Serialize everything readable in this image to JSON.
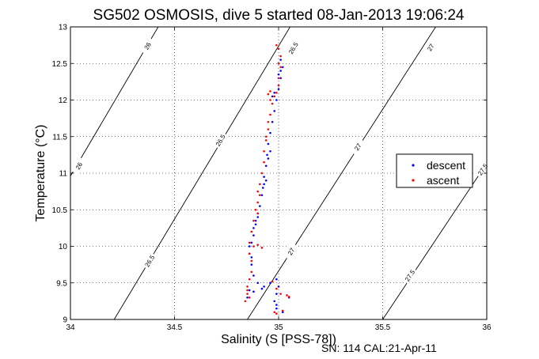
{
  "chart_data": {
    "type": "scatter",
    "title": "SG502 OSMOSIS, dive 5 started 08-Jan-2013 19:06:24",
    "xlabel": "Salinity (S [PSS-78])",
    "ylabel": "Temperature (°C)",
    "footer": "SN: 114  CAL:21-Apr-11",
    "xlim": [
      34,
      36
    ],
    "ylim": [
      9,
      13
    ],
    "x_ticks": [
      "34",
      "34.5",
      "35",
      "35.5",
      "36"
    ],
    "y_ticks": [
      "9",
      "9.5",
      "10",
      "10.5",
      "11",
      "11.5",
      "12",
      "12.5",
      "13"
    ],
    "grid": true,
    "legend_position": "right",
    "legend": [
      "descent",
      "ascent"
    ],
    "colors": {
      "descent": "#0000ff",
      "ascent": "#ff0000",
      "contour": "#000000"
    },
    "contours": [
      {
        "label": "26",
        "points": [
          [
            34.0,
            10.96
          ],
          [
            34.5,
            13.38
          ]
        ],
        "label_at": [
          [
            34.04,
            11.1
          ],
          [
            34.37,
            12.74
          ]
        ]
      },
      {
        "label": "26.5",
        "points": [
          [
            34.21,
            9.0
          ],
          [
            35.07,
            13.07
          ]
        ],
        "label_at": [
          [
            34.38,
            9.8
          ],
          [
            34.72,
            11.45
          ],
          [
            35.07,
            12.71
          ]
        ]
      },
      {
        "label": "27",
        "points": [
          [
            34.85,
            9.0
          ],
          [
            35.8,
            13.2
          ]
        ],
        "label_at": [
          [
            35.06,
            9.93
          ],
          [
            35.38,
            11.36
          ],
          [
            35.73,
            12.72
          ]
        ]
      },
      {
        "label": "27.5",
        "points": [
          [
            35.5,
            9.0
          ],
          [
            36.05,
            11.35
          ]
        ],
        "label_at": [
          [
            35.63,
            9.6
          ],
          [
            35.98,
            11.05
          ]
        ]
      }
    ],
    "series": [
      {
        "name": "descent",
        "points": [
          [
            35.01,
            12.55
          ],
          [
            35.02,
            12.45
          ],
          [
            35.01,
            12.3
          ],
          [
            35.0,
            12.15
          ],
          [
            34.99,
            12.0
          ],
          [
            34.98,
            11.85
          ],
          [
            34.97,
            11.7
          ],
          [
            34.96,
            11.55
          ],
          [
            34.95,
            11.4
          ],
          [
            34.945,
            11.25
          ],
          [
            34.94,
            11.1
          ],
          [
            34.93,
            10.95
          ],
          [
            34.925,
            10.8
          ],
          [
            34.92,
            10.7
          ],
          [
            34.91,
            10.55
          ],
          [
            34.9,
            10.4
          ],
          [
            34.89,
            10.3
          ],
          [
            34.88,
            10.15
          ],
          [
            34.87,
            10.05
          ],
          [
            34.86,
            9.9
          ],
          [
            34.87,
            9.75
          ],
          [
            34.88,
            9.6
          ],
          [
            34.9,
            9.5
          ],
          [
            34.93,
            9.45
          ],
          [
            34.96,
            9.5
          ],
          [
            34.99,
            9.55
          ],
          [
            35.0,
            9.45
          ],
          [
            34.99,
            9.35
          ],
          [
            34.98,
            9.25
          ],
          [
            34.99,
            9.15
          ],
          [
            35.02,
            9.1
          ],
          [
            34.85,
            9.3
          ],
          [
            34.86,
            9.4
          ],
          [
            34.88,
            9.38
          ],
          [
            34.92,
            9.42
          ],
          [
            35.05,
            9.3
          ],
          [
            34.95,
            11.2
          ],
          [
            34.96,
            11.3
          ],
          [
            34.97,
            12.05
          ],
          [
            34.98,
            12.1
          ],
          [
            35.0,
            12.35
          ],
          [
            35.01,
            12.4
          ],
          [
            34.93,
            10.85
          ],
          [
            34.94,
            10.9
          ],
          [
            34.9,
            10.45
          ],
          [
            34.89,
            10.35
          ],
          [
            34.88,
            10.25
          ],
          [
            34.86,
            10.0
          ],
          [
            34.87,
            9.85
          ],
          [
            34.99,
            9.2
          ]
        ]
      },
      {
        "name": "ascent",
        "points": [
          [
            34.99,
            12.75
          ],
          [
            35.0,
            12.7
          ],
          [
            35.01,
            12.6
          ],
          [
            35.0,
            12.5
          ],
          [
            35.0,
            12.2
          ],
          [
            34.99,
            12.1
          ],
          [
            34.98,
            12.05
          ],
          [
            34.95,
            12.08
          ],
          [
            34.96,
            12.12
          ],
          [
            34.97,
            11.95
          ],
          [
            34.96,
            11.8
          ],
          [
            34.95,
            11.6
          ],
          [
            34.94,
            11.45
          ],
          [
            34.93,
            11.3
          ],
          [
            34.93,
            11.15
          ],
          [
            34.92,
            11.0
          ],
          [
            34.91,
            10.85
          ],
          [
            34.9,
            10.75
          ],
          [
            34.9,
            10.6
          ],
          [
            34.89,
            10.5
          ],
          [
            34.88,
            10.35
          ],
          [
            34.87,
            10.2
          ],
          [
            34.86,
            10.05
          ],
          [
            34.88,
            10.0
          ],
          [
            34.9,
            10.02
          ],
          [
            34.92,
            9.98
          ],
          [
            34.87,
            9.8
          ],
          [
            34.87,
            9.65
          ],
          [
            34.86,
            9.55
          ],
          [
            34.85,
            9.45
          ],
          [
            34.85,
            9.35
          ],
          [
            34.84,
            9.25
          ],
          [
            34.97,
            9.52
          ],
          [
            34.99,
            9.42
          ],
          [
            35.01,
            9.35
          ],
          [
            35.04,
            9.33
          ],
          [
            35.05,
            9.31
          ],
          [
            34.98,
            9.1
          ],
          [
            34.99,
            9.08
          ],
          [
            35.02,
            9.12
          ],
          [
            34.94,
            11.5
          ],
          [
            34.95,
            11.7
          ],
          [
            35.0,
            12.3
          ],
          [
            35.01,
            12.45
          ],
          [
            34.96,
            12.0
          ],
          [
            34.91,
            10.7
          ],
          [
            34.9,
            10.45
          ],
          [
            34.86,
            9.9
          ],
          [
            34.85,
            9.4
          ],
          [
            34.86,
            9.3
          ]
        ]
      }
    ]
  }
}
